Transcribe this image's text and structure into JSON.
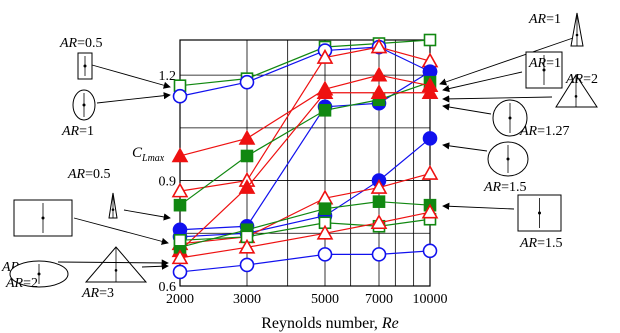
{
  "chart_data": {
    "type": "line",
    "title": "",
    "xlabel_text": "Reynolds number, ",
    "xlabel_var": "Re",
    "ylabel_main": "C",
    "ylabel_sub": "Lmax",
    "x_ticks": [
      "2000",
      "3000",
      "5000",
      "7000",
      "10000"
    ],
    "x": [
      2000,
      3000,
      5000,
      7000,
      10000
    ],
    "xlim": [
      1500,
      10000
    ],
    "x_scale": "log",
    "y_ticks": [
      "0.6",
      "0.9",
      "1.2"
    ],
    "ylim": [
      0.6,
      1.3
    ],
    "grid": true,
    "colors": {
      "red": "#ee1111",
      "green": "#118811",
      "blue": "#1111ee",
      "black": "#000000"
    },
    "series": [
      {
        "color": "green",
        "marker": "square-open",
        "values": [
          1.17,
          1.19,
          1.28,
          1.29,
          1.3
        ]
      },
      {
        "color": "blue",
        "marker": "circle-open",
        "values": [
          1.14,
          1.18,
          1.27,
          1.28,
          1.21
        ]
      },
      {
        "color": "red",
        "marker": "triangle-open",
        "values": [
          0.87,
          0.9,
          1.25,
          1.28,
          1.24
        ]
      },
      {
        "color": "blue",
        "marker": "circle-filled",
        "values": [
          0.76,
          0.77,
          1.11,
          1.12,
          1.21
        ]
      },
      {
        "color": "green",
        "marker": "square-filled",
        "values": [
          0.83,
          0.97,
          1.1,
          1.13,
          1.18
        ]
      },
      {
        "color": "red",
        "marker": "triangle-filled",
        "values": [
          0.97,
          1.02,
          1.16,
          1.2,
          1.17
        ]
      },
      {
        "color": "blue",
        "marker": "circle-filled",
        "values": [
          0.74,
          0.75,
          0.8,
          0.9,
          1.02
        ]
      },
      {
        "color": "red",
        "marker": "triangle-filled",
        "values": [
          0.7,
          0.88,
          1.15,
          1.15,
          1.15
        ]
      },
      {
        "color": "red",
        "marker": "triangle-open",
        "values": [
          0.72,
          0.74,
          0.85,
          0.88,
          0.92
        ]
      },
      {
        "color": "green",
        "marker": "square-filled",
        "values": [
          0.71,
          0.76,
          0.82,
          0.84,
          0.83
        ]
      },
      {
        "color": "green",
        "marker": "square-open",
        "values": [
          0.73,
          0.74,
          0.78,
          0.77,
          0.79
        ]
      },
      {
        "color": "red",
        "marker": "triangle-open",
        "values": [
          0.68,
          0.71,
          0.75,
          0.78,
          0.81
        ]
      },
      {
        "color": "blue",
        "marker": "circle-open",
        "values": [
          0.64,
          0.66,
          0.69,
          0.69,
          0.7
        ]
      }
    ],
    "annotations": [
      {
        "pre": "AR",
        "text": "=0.5",
        "shape": "rect-tall"
      },
      {
        "pre": "AR",
        "text": "=1",
        "shape": "ellipse-tall"
      },
      {
        "pre": "AR",
        "text": "=0.5",
        "shape": "triangle-thin"
      },
      {
        "pre": "AR",
        "text": "=1.5",
        "shape": "rect-wide"
      },
      {
        "pre": "AR",
        "text": "=3",
        "shape": "triangle-wide"
      },
      {
        "pre": "AR",
        "text": "=2",
        "shape": "ellipse-wide"
      },
      {
        "pre": "AR",
        "text": "=1",
        "shape": "triangle-narrow"
      },
      {
        "pre": "AR",
        "text": "=1",
        "shape": "rect-square"
      },
      {
        "pre": "AR",
        "text": "=2",
        "shape": "triangle-medium"
      },
      {
        "pre": "AR",
        "text": "=1.27",
        "shape": "ellipse-round"
      },
      {
        "pre": "AR",
        "text": "=1.5",
        "shape": "ellipse-medium"
      },
      {
        "pre": "AR",
        "text": "=1.5",
        "shape": "rect-medium"
      }
    ]
  }
}
